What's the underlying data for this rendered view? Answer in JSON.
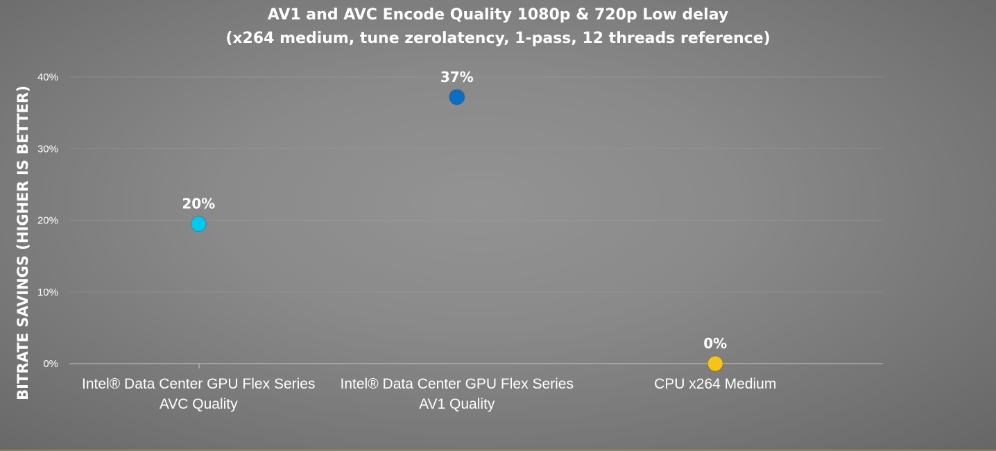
{
  "chart_data": {
    "type": "scatter",
    "title_lines": [
      "AV1 and AVC Encode Quality 1080p & 720p Low delay",
      "(x264 medium, tune zerolatency, 1-pass, 12 threads reference)"
    ],
    "ylabel": "BITRATE SAVINGS (HIGHER IS BETTER)",
    "xlabel": "",
    "ylim": [
      0,
      40
    ],
    "yticks": [
      0,
      10,
      20,
      30,
      40
    ],
    "ytick_labels": [
      "0%",
      "10%",
      "20%",
      "30%",
      "40%"
    ],
    "grid": true,
    "legend": "none",
    "categories": [
      [
        "Intel® Data Center GPU Flex Series",
        "AVC Quality"
      ],
      [
        "Intel® Data Center GPU Flex Series",
        "AV1 Quality"
      ],
      [
        "CPU x264 Medium"
      ]
    ],
    "points": [
      {
        "x_index": 1,
        "y": 19.5,
        "label": "20%",
        "color": "#00c8f0"
      },
      {
        "x_index": 2,
        "y": 37.2,
        "label": "37%",
        "color": "#0a6fc2"
      },
      {
        "x_index": 3,
        "y": 0,
        "label": "0%",
        "color": "#f5c416"
      }
    ]
  }
}
